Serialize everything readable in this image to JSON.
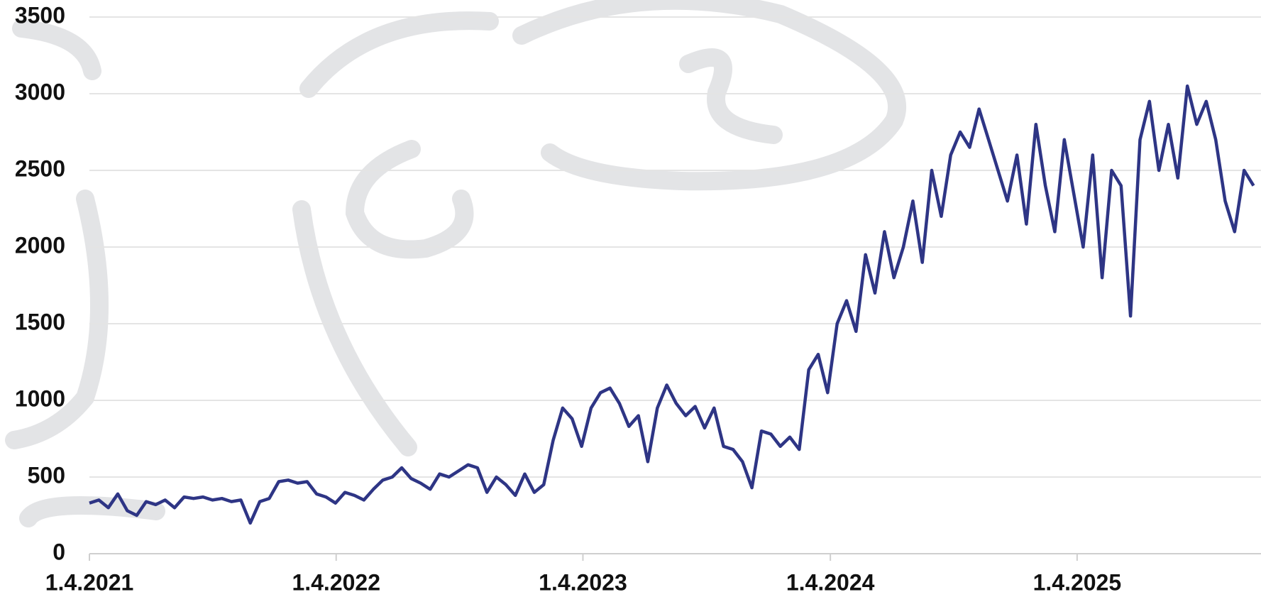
{
  "chart_data": {
    "type": "line",
    "x": [
      "2021-04-01",
      "2021-04-15",
      "2021-04-29",
      "2021-05-13",
      "2021-05-27",
      "2021-06-10",
      "2021-06-24",
      "2021-07-08",
      "2021-07-22",
      "2021-08-05",
      "2021-08-19",
      "2021-09-02",
      "2021-09-16",
      "2021-09-30",
      "2021-10-14",
      "2021-10-28",
      "2021-11-11",
      "2021-11-25",
      "2021-12-09",
      "2021-12-23",
      "2022-01-06",
      "2022-01-20",
      "2022-02-03",
      "2022-02-17",
      "2022-03-03",
      "2022-03-17",
      "2022-03-31",
      "2022-04-14",
      "2022-04-28",
      "2022-05-12",
      "2022-05-26",
      "2022-06-09",
      "2022-06-23",
      "2022-07-07",
      "2022-07-21",
      "2022-08-04",
      "2022-08-18",
      "2022-09-01",
      "2022-09-15",
      "2022-09-29",
      "2022-10-13",
      "2022-10-27",
      "2022-11-10",
      "2022-11-24",
      "2022-12-08",
      "2022-12-22",
      "2023-01-05",
      "2023-01-19",
      "2023-02-02",
      "2023-02-16",
      "2023-03-02",
      "2023-03-16",
      "2023-03-30",
      "2023-04-13",
      "2023-04-27",
      "2023-05-11",
      "2023-05-25",
      "2023-06-08",
      "2023-06-22",
      "2023-07-06",
      "2023-07-20",
      "2023-08-03",
      "2023-08-17",
      "2023-08-31",
      "2023-09-14",
      "2023-09-28",
      "2023-10-12",
      "2023-10-26",
      "2023-11-09",
      "2023-11-23",
      "2023-12-07",
      "2023-12-21",
      "2024-01-04",
      "2024-01-18",
      "2024-02-01",
      "2024-02-15",
      "2024-02-29",
      "2024-03-14",
      "2024-03-28",
      "2024-04-11",
      "2024-04-25",
      "2024-05-09",
      "2024-05-23",
      "2024-06-06",
      "2024-06-20",
      "2024-07-04",
      "2024-07-18",
      "2024-08-01",
      "2024-08-15",
      "2024-08-29",
      "2024-09-12",
      "2024-09-26",
      "2024-10-10",
      "2024-10-24",
      "2024-11-07",
      "2024-11-21",
      "2024-12-05",
      "2024-12-19",
      "2025-01-02",
      "2025-01-16",
      "2025-01-30",
      "2025-02-13",
      "2025-02-27",
      "2025-03-13",
      "2025-03-27",
      "2025-04-10",
      "2025-04-24",
      "2025-05-08",
      "2025-05-22",
      "2025-06-05",
      "2025-06-19",
      "2025-07-03",
      "2025-07-17",
      "2025-07-31",
      "2025-08-14",
      "2025-08-28",
      "2025-09-11",
      "2025-09-25",
      "2025-10-09",
      "2025-10-23",
      "2025-11-06",
      "2025-11-20",
      "2025-12-04",
      "2025-12-18"
    ],
    "series": [
      {
        "color": "#2e3585",
        "values": [
          330,
          350,
          300,
          390,
          280,
          250,
          340,
          320,
          350,
          300,
          370,
          360,
          370,
          350,
          360,
          340,
          350,
          200,
          340,
          360,
          470,
          480,
          460,
          470,
          390,
          370,
          330,
          400,
          380,
          350,
          420,
          480,
          500,
          560,
          490,
          460,
          420,
          520,
          500,
          540,
          580,
          560,
          400,
          500,
          450,
          380,
          520,
          400,
          450,
          740,
          950,
          880,
          700,
          950,
          1050,
          1080,
          980,
          830,
          900,
          600,
          950,
          1100,
          980,
          900,
          960,
          820,
          950,
          700,
          680,
          600,
          430,
          800,
          780,
          700,
          760,
          680,
          1200,
          1300,
          1050,
          1500,
          1650,
          1450,
          1950,
          1700,
          2100,
          1800,
          2000,
          2300,
          1900,
          2500,
          2200,
          2600,
          2750,
          2650,
          2900,
          2700,
          2500,
          2300,
          2600,
          2150,
          2800,
          2400,
          2100,
          2700,
          2350,
          2000,
          2600,
          1800,
          2500,
          2400,
          1550,
          2700,
          2950,
          2500,
          2800,
          2450,
          3050,
          2800,
          2950,
          2700,
          2300,
          2100,
          2500,
          2400
        ]
      }
    ],
    "xlim": [
      "2021-04-01",
      "2025-12-29"
    ],
    "xticks": [
      {
        "value": "2021-04-01",
        "label": "1.4.2021"
      },
      {
        "value": "2022-04-01",
        "label": "1.4.2022"
      },
      {
        "value": "2023-04-01",
        "label": "1.4.2023"
      },
      {
        "value": "2024-04-01",
        "label": "1.4.2024"
      },
      {
        "value": "2025-04-01",
        "label": "1.4.2025"
      }
    ],
    "ylim": [
      0,
      3500
    ],
    "yticks": [
      0,
      500,
      1000,
      1500,
      2000,
      2500,
      3000,
      3500
    ],
    "grid": true
  }
}
